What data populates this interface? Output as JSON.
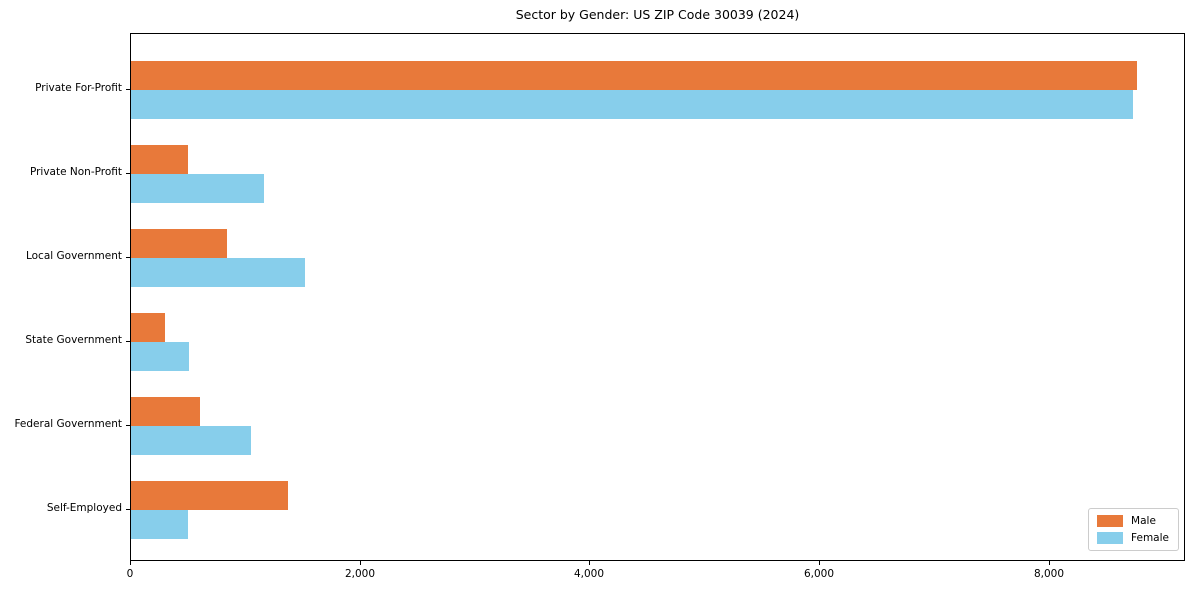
{
  "title": "Sector by Gender: US ZIP Code 30039 (2024)",
  "colors": {
    "male": "#E8793A",
    "female": "#87CEEB",
    "axis": "#000000",
    "legend_border": "#cccccc",
    "background": "#ffffff"
  },
  "legend": {
    "position": "lower right",
    "items": [
      {
        "label": "Male",
        "color": "#E8793A"
      },
      {
        "label": "Female",
        "color": "#87CEEB"
      }
    ]
  },
  "chart_data": {
    "type": "bar",
    "orientation": "horizontal",
    "title": "Sector by Gender: US ZIP Code 30039 (2024)",
    "xlabel": "",
    "ylabel": "",
    "categories": [
      "Private For-Profit",
      "Private Non-Profit",
      "Local Government",
      "State Government",
      "Federal Government",
      "Self-Employed"
    ],
    "series": [
      {
        "name": "Male",
        "color": "#E8793A",
        "values": [
          8760,
          500,
          835,
          300,
          600,
          1365
        ]
      },
      {
        "name": "Female",
        "color": "#87CEEB",
        "values": [
          8720,
          1160,
          1515,
          505,
          1045,
          500
        ]
      }
    ],
    "xlim": [
      0,
      9185
    ],
    "xticks": {
      "values": [
        0,
        2000,
        4000,
        6000,
        8000
      ],
      "labels": [
        "0",
        "2,000",
        "4,000",
        "6,000",
        "8,000"
      ]
    },
    "grid": false,
    "legend_position": "lower right"
  }
}
